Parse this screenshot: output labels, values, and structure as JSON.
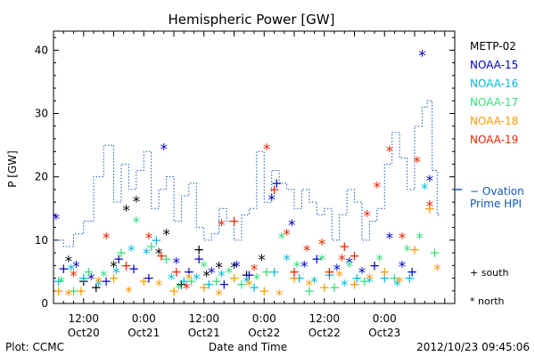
{
  "chart_data": {
    "type": "scatter",
    "title": "Hemispheric Power [GW]",
    "xlabel": "Date and Time",
    "ylabel": "P [GW]",
    "xlim": [
      0,
      80
    ],
    "ylim": [
      0,
      43
    ],
    "x_unit": "hours since 2012-10-20 06:00",
    "yticks": [
      0,
      10,
      20,
      30,
      40
    ],
    "xticks": [
      {
        "x": 6,
        "line1": "12:00",
        "line2": "Oct20"
      },
      {
        "x": 18,
        "line1": "0:00",
        "line2": "Oct21"
      },
      {
        "x": 30,
        "line1": "12:00",
        "line2": "Oct21"
      },
      {
        "x": 42,
        "line1": "0:00",
        "line2": "Oct22"
      },
      {
        "x": 54,
        "line1": "12:00",
        "line2": "Oct22"
      },
      {
        "x": 66,
        "line1": "0:00",
        "line2": "Oct23"
      }
    ],
    "grid": false,
    "markers": {
      "south": "+",
      "north": "*"
    },
    "marker_legend": {
      "south_label": "+ south",
      "north_label": "* north"
    },
    "series": [
      {
        "name": "METP-02",
        "color": "#000000",
        "points": [
          [
            3.0,
            6.8,
            "north"
          ],
          [
            6.0,
            3.5,
            "south"
          ],
          [
            8.5,
            2.5,
            "south"
          ],
          [
            12.0,
            6.0,
            "north"
          ],
          [
            14.5,
            14.8,
            "north"
          ],
          [
            16.5,
            16.2,
            "north"
          ],
          [
            21.0,
            8.0,
            "north"
          ],
          [
            22.5,
            11.0,
            "north"
          ],
          [
            25.5,
            3.0,
            "south"
          ],
          [
            29.0,
            8.5,
            "south"
          ],
          [
            30.5,
            4.5,
            "north"
          ],
          [
            33.0,
            5.8,
            "north"
          ],
          [
            36.0,
            5.8,
            "north"
          ],
          [
            38.5,
            4.5,
            "south"
          ],
          [
            41.5,
            7.0,
            "north"
          ]
        ]
      },
      {
        "name": "NOAA-15",
        "color": "#0000cc",
        "points": [
          [
            0.5,
            13.5,
            "north"
          ],
          [
            2.0,
            5.5,
            "south"
          ],
          [
            4.5,
            6.0,
            "north"
          ],
          [
            7.5,
            4.0,
            "north"
          ],
          [
            10.5,
            3.5,
            "south"
          ],
          [
            13.0,
            7.0,
            "south"
          ],
          [
            16.0,
            5.5,
            "south"
          ],
          [
            19.0,
            4.0,
            "south"
          ],
          [
            22.0,
            24.5,
            "north"
          ],
          [
            24.5,
            6.5,
            "north"
          ],
          [
            27.0,
            5.0,
            "south"
          ],
          [
            29.0,
            7.0,
            "south"
          ],
          [
            31.5,
            5.0,
            "north"
          ],
          [
            34.0,
            3.0,
            "south"
          ],
          [
            36.5,
            6.0,
            "north"
          ],
          [
            39.0,
            4.5,
            "south"
          ],
          [
            43.5,
            16.5,
            "north"
          ],
          [
            44.5,
            19.0,
            "south"
          ],
          [
            47.5,
            12.5,
            "north"
          ],
          [
            50.0,
            6.0,
            "north"
          ],
          [
            52.5,
            7.0,
            "south"
          ],
          [
            56.5,
            5.5,
            "north"
          ],
          [
            59.0,
            6.5,
            "north"
          ],
          [
            61.5,
            5.0,
            "north"
          ],
          [
            64.0,
            6.0,
            "south"
          ],
          [
            67.0,
            10.5,
            "north"
          ],
          [
            69.5,
            6.0,
            "north"
          ],
          [
            71.5,
            5.0,
            "south"
          ],
          [
            73.5,
            39.3,
            "north"
          ],
          [
            75.0,
            19.5,
            "north"
          ]
        ]
      },
      {
        "name": "NOAA-16",
        "color": "#00bbdd",
        "points": [
          [
            1.0,
            3.5,
            "south"
          ],
          [
            3.5,
            5.5,
            "north"
          ],
          [
            6.0,
            4.0,
            "south"
          ],
          [
            9.0,
            3.0,
            "north"
          ],
          [
            12.5,
            5.0,
            "north"
          ],
          [
            15.5,
            8.5,
            "north"
          ],
          [
            18.5,
            8.0,
            "north"
          ],
          [
            20.5,
            10.0,
            "south"
          ],
          [
            23.5,
            4.0,
            "north"
          ],
          [
            26.0,
            3.5,
            "south"
          ],
          [
            28.5,
            4.0,
            "north"
          ],
          [
            31.0,
            3.0,
            "south"
          ],
          [
            33.5,
            4.5,
            "north"
          ],
          [
            36.0,
            4.0,
            "south"
          ],
          [
            38.5,
            3.5,
            "north"
          ],
          [
            40.0,
            2.5,
            "south"
          ],
          [
            44.0,
            5.0,
            "south"
          ],
          [
            46.5,
            7.0,
            "north"
          ],
          [
            49.0,
            4.0,
            "south"
          ],
          [
            52.0,
            3.5,
            "north"
          ],
          [
            55.0,
            4.5,
            "south"
          ],
          [
            58.0,
            3.0,
            "north"
          ],
          [
            60.5,
            4.0,
            "south"
          ],
          [
            63.0,
            3.5,
            "north"
          ],
          [
            66.0,
            4.0,
            "south"
          ],
          [
            68.5,
            3.0,
            "north"
          ],
          [
            71.0,
            4.0,
            "south"
          ],
          [
            74.0,
            18.3,
            "north"
          ]
        ]
      },
      {
        "name": "NOAA-17",
        "color": "#33dd77",
        "points": [
          [
            1.5,
            3.5,
            "north"
          ],
          [
            4.0,
            2.0,
            "south"
          ],
          [
            7.0,
            5.0,
            "south"
          ],
          [
            10.0,
            4.5,
            "north"
          ],
          [
            13.5,
            8.0,
            "south"
          ],
          [
            16.5,
            13.0,
            "north"
          ],
          [
            19.5,
            9.0,
            "south"
          ],
          [
            22.5,
            7.0,
            "south"
          ],
          [
            25.0,
            2.5,
            "north"
          ],
          [
            27.5,
            3.5,
            "south"
          ],
          [
            30.0,
            6.0,
            "north"
          ],
          [
            32.5,
            3.5,
            "south"
          ],
          [
            35.0,
            5.0,
            "north"
          ],
          [
            37.5,
            3.0,
            "south"
          ],
          [
            40.5,
            4.0,
            "north"
          ],
          [
            42.5,
            5.0,
            "south"
          ],
          [
            45.5,
            10.5,
            "north"
          ],
          [
            48.5,
            6.0,
            "north"
          ],
          [
            51.0,
            2.0,
            "south"
          ],
          [
            53.5,
            7.0,
            "north"
          ],
          [
            56.0,
            2.5,
            "south"
          ],
          [
            59.0,
            6.0,
            "north"
          ],
          [
            62.0,
            3.5,
            "south"
          ],
          [
            65.0,
            7.0,
            "north"
          ],
          [
            68.0,
            4.0,
            "south"
          ],
          [
            70.5,
            8.5,
            "north"
          ],
          [
            73.0,
            10.5,
            "north"
          ],
          [
            76.0,
            8.0,
            "south"
          ]
        ]
      },
      {
        "name": "NOAA-18",
        "color": "#ff9900",
        "points": [
          [
            1.0,
            2.0,
            "south"
          ],
          [
            3.0,
            1.5,
            "north"
          ],
          [
            5.5,
            2.0,
            "south"
          ],
          [
            9.0,
            3.5,
            "north"
          ],
          [
            12.0,
            4.0,
            "south"
          ],
          [
            15.0,
            2.0,
            "north"
          ],
          [
            18.0,
            3.5,
            "south"
          ],
          [
            21.0,
            3.0,
            "north"
          ],
          [
            24.0,
            2.0,
            "south"
          ],
          [
            27.0,
            4.0,
            "north"
          ],
          [
            30.0,
            2.5,
            "south"
          ],
          [
            33.0,
            1.5,
            "north"
          ],
          [
            36.0,
            4.0,
            "south"
          ],
          [
            39.0,
            3.0,
            "north"
          ],
          [
            42.0,
            2.0,
            "south"
          ],
          [
            45.0,
            1.5,
            "north"
          ],
          [
            48.0,
            4.0,
            "south"
          ],
          [
            51.0,
            3.0,
            "north"
          ],
          [
            54.0,
            2.5,
            "south"
          ],
          [
            57.0,
            4.5,
            "north"
          ],
          [
            60.0,
            3.0,
            "south"
          ],
          [
            63.0,
            4.0,
            "north"
          ],
          [
            66.0,
            5.0,
            "south"
          ],
          [
            69.0,
            3.5,
            "north"
          ],
          [
            72.0,
            8.5,
            "south"
          ],
          [
            75.0,
            15.0,
            "south"
          ],
          [
            76.5,
            5.5,
            "north"
          ]
        ]
      },
      {
        "name": "NOAA-19",
        "color": "#ee2200",
        "points": [
          [
            4.0,
            4.5,
            "north"
          ],
          [
            10.5,
            10.5,
            "north"
          ],
          [
            14.5,
            6.0,
            "south"
          ],
          [
            19.0,
            10.5,
            "north"
          ],
          [
            21.5,
            7.5,
            "south"
          ],
          [
            24.5,
            5.0,
            "south"
          ],
          [
            26.5,
            2.5,
            "north"
          ],
          [
            33.5,
            12.5,
            "north"
          ],
          [
            36.0,
            13.0,
            "south"
          ],
          [
            40.0,
            5.5,
            "north"
          ],
          [
            42.5,
            24.5,
            "north"
          ],
          [
            44.0,
            18.0,
            "south"
          ],
          [
            46.5,
            11.0,
            "north"
          ],
          [
            48.0,
            5.0,
            "south"
          ],
          [
            50.5,
            8.5,
            "north"
          ],
          [
            53.5,
            9.5,
            "north"
          ],
          [
            55.0,
            5.0,
            "south"
          ],
          [
            57.5,
            7.0,
            "north"
          ],
          [
            60.0,
            7.5,
            "south"
          ],
          [
            62.5,
            14.0,
            "north"
          ],
          [
            64.5,
            18.5,
            "north"
          ],
          [
            67.0,
            24.2,
            "north"
          ],
          [
            69.5,
            10.5,
            "north"
          ],
          [
            72.5,
            22.5,
            "north"
          ],
          [
            75.0,
            15.5,
            "north"
          ],
          [
            58.0,
            9.0,
            "south"
          ]
        ]
      }
    ],
    "ovation": {
      "name": "Ovation Prime HPI",
      "label": "− Ovation Prime HPI",
      "label_line1": "− Ovation",
      "label_line2": "Prime HPI",
      "color": "#1155bb",
      "marker_value": 18,
      "steps": [
        [
          0,
          10
        ],
        [
          2,
          9
        ],
        [
          4,
          11
        ],
        [
          6,
          13
        ],
        [
          8,
          20
        ],
        [
          10,
          25
        ],
        [
          12,
          16
        ],
        [
          13.5,
          22
        ],
        [
          15,
          18
        ],
        [
          16.5,
          21
        ],
        [
          18,
          24
        ],
        [
          19.5,
          15
        ],
        [
          21,
          18
        ],
        [
          22.5,
          20
        ],
        [
          24,
          13
        ],
        [
          25.5,
          17
        ],
        [
          27,
          19
        ],
        [
          28.5,
          12
        ],
        [
          30,
          10
        ],
        [
          31.5,
          11
        ],
        [
          33,
          15
        ],
        [
          34.5,
          13
        ],
        [
          36,
          10
        ],
        [
          37.5,
          14
        ],
        [
          39,
          15
        ],
        [
          40.5,
          24
        ],
        [
          42,
          16
        ],
        [
          43.5,
          21
        ],
        [
          45,
          19
        ],
        [
          46.5,
          18
        ],
        [
          48,
          15
        ],
        [
          49.5,
          18
        ],
        [
          51,
          16
        ],
        [
          52.5,
          14
        ],
        [
          54,
          15
        ],
        [
          55.5,
          10
        ],
        [
          57,
          14
        ],
        [
          58.5,
          18
        ],
        [
          60,
          16
        ],
        [
          61.5,
          10
        ],
        [
          63,
          13
        ],
        [
          64.5,
          15
        ],
        [
          66,
          22
        ],
        [
          67.5,
          27
        ],
        [
          69,
          23
        ],
        [
          70.5,
          18
        ],
        [
          72,
          28
        ],
        [
          73.5,
          31
        ],
        [
          74.5,
          32
        ],
        [
          75.5,
          21
        ],
        [
          76.5,
          14
        ],
        [
          77,
          14
        ]
      ]
    },
    "legend_position": "right"
  },
  "footer": {
    "left": "Plot: CCMC",
    "center": "Date and Time",
    "right": "2012/10/23 09:45:06"
  }
}
